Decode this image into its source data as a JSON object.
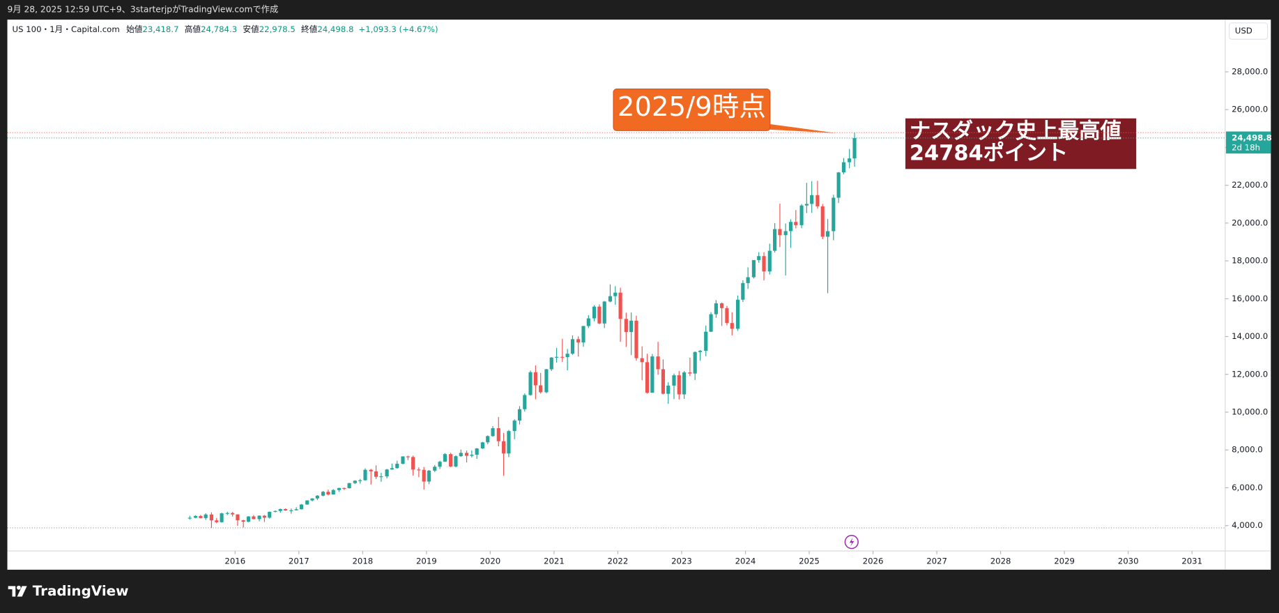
{
  "caption": "9月 28, 2025 12:59 UTC+9、3starterjpがTradingView.comで作成",
  "brand": "TradingView",
  "legend": {
    "symbol": "US 100・1月・Capital.com",
    "fields": [
      {
        "name": "始値",
        "value": "23,418.7"
      },
      {
        "name": "高値",
        "value": "24,784.3"
      },
      {
        "name": "安値",
        "value": "22,978.5"
      },
      {
        "name": "終値",
        "value": "24,498.8"
      }
    ],
    "change": "+1,093.3 (+4.67%)"
  },
  "chart_data": {
    "type": "candlestick",
    "currency": "USD",
    "up_color": "#26a69a",
    "down_color": "#ef5350",
    "last_price_label": "24,498.8",
    "countdown": "2d 18h",
    "annotations": [
      "2025/9時点",
      "ナスダック史上最高値",
      "24784ポイント"
    ],
    "xlim": [
      2012.43,
      2031.52
    ],
    "xticks": [
      2016,
      2017,
      2018,
      2019,
      2020,
      2021,
      2022,
      2023,
      2024,
      2025,
      2026,
      2027,
      2028,
      2029,
      2030,
      2031
    ],
    "ylim": [
      2660,
      30760
    ],
    "yticks": [
      {
        "value": 4000,
        "label": "4,000.0"
      },
      {
        "value": 6000,
        "label": "6,000.0"
      },
      {
        "value": 8000,
        "label": "8,000.0"
      },
      {
        "value": 10000,
        "label": "10,000.0"
      },
      {
        "value": 12000,
        "label": "12,000.0"
      },
      {
        "value": 14000,
        "label": "14,000.0"
      },
      {
        "value": 16000,
        "label": "16,000.0"
      },
      {
        "value": 18000,
        "label": "18,000.0"
      },
      {
        "value": 20000,
        "label": "20,000.0"
      },
      {
        "value": 22000,
        "label": "22,000.0"
      },
      {
        "value": 24000,
        "label": "24,000.0"
      },
      {
        "value": 26000,
        "label": "26,000.0"
      },
      {
        "value": 28000,
        "label": "28,000.0"
      }
    ],
    "x": [
      2015.29,
      2015.38,
      2015.46,
      2015.54,
      2015.63,
      2015.71,
      2015.79,
      2015.88,
      2015.96,
      2016.04,
      2016.13,
      2016.21,
      2016.29,
      2016.38,
      2016.46,
      2016.54,
      2016.63,
      2016.71,
      2016.79,
      2016.88,
      2016.96,
      2017.04,
      2017.13,
      2017.21,
      2017.29,
      2017.38,
      2017.46,
      2017.54,
      2017.63,
      2017.71,
      2017.79,
      2017.88,
      2017.96,
      2018.04,
      2018.13,
      2018.21,
      2018.29,
      2018.38,
      2018.46,
      2018.54,
      2018.63,
      2018.71,
      2018.79,
      2018.88,
      2018.96,
      2019.04,
      2019.13,
      2019.21,
      2019.29,
      2019.38,
      2019.46,
      2019.54,
      2019.63,
      2019.71,
      2019.79,
      2019.88,
      2019.96,
      2020.04,
      2020.13,
      2020.21,
      2020.29,
      2020.38,
      2020.46,
      2020.54,
      2020.63,
      2020.71,
      2020.79,
      2020.88,
      2020.96,
      2021.04,
      2021.13,
      2021.21,
      2021.29,
      2021.38,
      2021.46,
      2021.54,
      2021.63,
      2021.71,
      2021.79,
      2021.88,
      2021.96,
      2022.04,
      2022.13,
      2022.21,
      2022.29,
      2022.38,
      2022.46,
      2022.54,
      2022.63,
      2022.71,
      2022.79,
      2022.88,
      2022.96,
      2023.04,
      2023.13,
      2023.21,
      2023.29,
      2023.38,
      2023.46,
      2023.54,
      2023.63,
      2023.71,
      2023.79,
      2023.88,
      2023.96,
      2024.04,
      2024.13,
      2024.21,
      2024.29,
      2024.38,
      2024.46,
      2024.54,
      2024.63,
      2024.71,
      2024.79,
      2024.88,
      2024.96,
      2025.04,
      2025.13,
      2025.21,
      2025.29,
      2025.38,
      2025.46,
      2025.54,
      2025.63,
      2025.71
    ],
    "open": [
      4390,
      4415,
      4509,
      4397,
      4588,
      4275,
      4181,
      4648,
      4665,
      4593,
      4280,
      4202,
      4484,
      4341,
      4524,
      4418,
      4730,
      4771,
      4876,
      4801,
      4810,
      4864,
      5115,
      5331,
      5436,
      5583,
      5788,
      5647,
      5880,
      5988,
      5979,
      6248,
      6374,
      6397,
      6950,
      6870,
      6581,
      6605,
      6967,
      7040,
      7272,
      7658,
      7627,
      6967,
      6949,
      6330,
      6906,
      7114,
      7378,
      7781,
      7127,
      7671,
      7848,
      7692,
      7749,
      8084,
      8403,
      8733,
      9150,
      8462,
      7813,
      9000,
      9555,
      10156,
      10905,
      12111,
      11418,
      11052,
      12268,
      12888,
      12925,
      12909,
      13091,
      13860,
      13687,
      14554,
      14960,
      15582,
      14690,
      15850,
      16135,
      16320,
      14930,
      14237,
      14838,
      12855,
      12643,
      11028,
      12947,
      12272,
      10971,
      11405,
      11951,
      10940,
      12101,
      12042,
      13181,
      13246,
      14254,
      15179,
      15757,
      15501,
      14715,
      14409,
      15947,
      16826,
      17137,
      18044,
      18254,
      17441,
      18536,
      19683,
      19362,
      19575,
      20061,
      19890,
      20930,
      21012,
      21478,
      20884,
      19278,
      19571,
      21340,
      22679,
      23218,
      23418.7
    ],
    "high": [
      4520,
      4550,
      4560,
      4650,
      4700,
      4400,
      4680,
      4730,
      4720,
      4600,
      4310,
      4500,
      4560,
      4540,
      4560,
      4740,
      4800,
      4900,
      4910,
      4900,
      4970,
      5140,
      5340,
      5450,
      5610,
      5830,
      5900,
      5930,
      6000,
      6010,
      6260,
      6400,
      6470,
      7030,
      7000,
      7190,
      6790,
      7000,
      7280,
      7430,
      7670,
      7700,
      7700,
      7080,
      7100,
      6940,
      7200,
      7430,
      7830,
      7850,
      7720,
      8020,
      7970,
      7980,
      8100,
      8430,
      8770,
      9260,
      9740,
      8900,
      9060,
      9620,
      10320,
      10990,
      12200,
      12470,
      12080,
      12290,
      12910,
      13400,
      13880,
      13340,
      14060,
      14010,
      14570,
      15130,
      15660,
      15700,
      15880,
      16760,
      16660,
      16580,
      15260,
      15270,
      15100,
      13480,
      13090,
      13080,
      13720,
      12790,
      11580,
      12040,
      12170,
      12180,
      12880,
      13210,
      13290,
      14580,
      15290,
      15930,
      15800,
      15620,
      15280,
      16170,
      16970,
      17660,
      18040,
      18460,
      18460,
      18910,
      20000,
      21030,
      19980,
      20200,
      20690,
      21010,
      22130,
      22220,
      22230,
      21010,
      20210,
      21500,
      22700,
      23440,
      23920,
      24784.3
    ],
    "low": [
      4320,
      4390,
      4380,
      4300,
      3880,
      4130,
      4160,
      4560,
      4480,
      3990,
      3900,
      4180,
      4330,
      4230,
      4190,
      4370,
      4700,
      4680,
      4780,
      4630,
      4800,
      4850,
      5100,
      5280,
      5350,
      5550,
      5600,
      5640,
      5780,
      5880,
      5960,
      6200,
      6220,
      6380,
      6170,
      6460,
      6320,
      6500,
      6950,
      7010,
      7240,
      7470,
      6640,
      6560,
      5900,
      6190,
      6830,
      6990,
      7370,
      7090,
      7080,
      7640,
      7340,
      7600,
      7530,
      8050,
      8300,
      8700,
      8190,
      6630,
      7620,
      8570,
      9350,
      10030,
      10870,
      10680,
      10980,
      11000,
      12180,
      12620,
      12660,
      12210,
      13030,
      12940,
      13460,
      14450,
      14800,
      14650,
      14450,
      15810,
      15680,
      13720,
      13450,
      13020,
      12730,
      11690,
      10980,
      11040,
      11980,
      10940,
      10440,
      10690,
      10670,
      10700,
      11910,
      11700,
      12720,
      12960,
      14240,
      14990,
      14560,
      14590,
      14060,
      14300,
      15830,
      16520,
      17070,
      17900,
      16970,
      17280,
      18440,
      18730,
      17230,
      18690,
      19720,
      19730,
      20530,
      20540,
      20770,
      19150,
      16290,
      19090,
      21060,
      22580,
      22900,
      22978.5
    ],
    "close": [
      4415,
      4509,
      4397,
      4588,
      4275,
      4181,
      4648,
      4665,
      4593,
      4280,
      4202,
      4484,
      4341,
      4524,
      4418,
      4730,
      4771,
      4876,
      4801,
      4810,
      4864,
      5115,
      5331,
      5436,
      5583,
      5788,
      5647,
      5880,
      5988,
      5979,
      6248,
      6374,
      6397,
      6950,
      6870,
      6581,
      6605,
      6967,
      7040,
      7272,
      7658,
      7627,
      6967,
      6949,
      6330,
      6906,
      7114,
      7378,
      7781,
      7127,
      7671,
      7848,
      7692,
      7749,
      8084,
      8403,
      8733,
      9150,
      8462,
      7813,
      9000,
      9555,
      10156,
      10905,
      12111,
      11418,
      11052,
      12268,
      12888,
      12925,
      12909,
      13091,
      13860,
      13687,
      14554,
      14960,
      15582,
      14690,
      15850,
      16135,
      16320,
      14930,
      14237,
      14838,
      12855,
      12643,
      11028,
      12947,
      12272,
      10971,
      11405,
      11951,
      10940,
      12101,
      12042,
      13181,
      13246,
      14254,
      15179,
      15757,
      15501,
      14715,
      14409,
      15947,
      16826,
      17137,
      18044,
      18254,
      17441,
      18536,
      19683,
      19362,
      19575,
      20061,
      19890,
      20930,
      21012,
      21478,
      20884,
      19278,
      19571,
      21340,
      22679,
      23218,
      23418.7,
      24498.8
    ]
  }
}
